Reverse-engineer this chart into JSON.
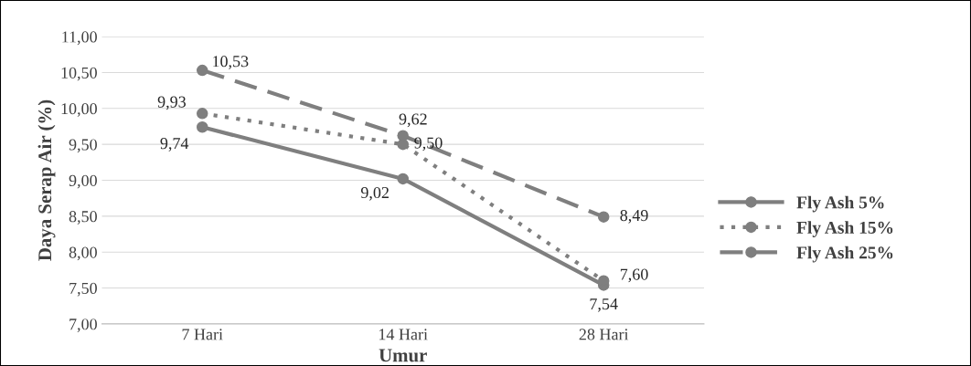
{
  "chart_data": {
    "type": "line",
    "xlabel": "Umur",
    "ylabel": "Daya Serap Air (%)",
    "categories": [
      "7 Hari",
      "14 Hari",
      "28 Hari"
    ],
    "series": [
      {
        "name": "Fly Ash 5%",
        "color": "#7f7f7f",
        "values": [
          9.74,
          9.02,
          7.54
        ],
        "value_labels": [
          "9,74",
          "9,02",
          "7,54"
        ],
        "line_style": "solid",
        "marker": "circle"
      },
      {
        "name": "Fly Ash 15%",
        "color": "#7f7f7f",
        "values": [
          9.93,
          9.5,
          7.6
        ],
        "value_labels": [
          "9,93",
          "9,50",
          "7,60"
        ],
        "line_style": "dotted",
        "marker": "circle"
      },
      {
        "name": "Fly Ash 25%",
        "color": "#7f7f7f",
        "values": [
          10.53,
          9.62,
          8.49
        ],
        "value_labels": [
          "10,53",
          "9,62",
          "8,49"
        ],
        "line_style": "dashed",
        "marker": "circle"
      }
    ],
    "ylim": [
      7,
      11
    ],
    "yticks": [
      {
        "value": 7,
        "label": "7,00"
      },
      {
        "value": 7.5,
        "label": "7,50"
      },
      {
        "value": 8,
        "label": "8,00"
      },
      {
        "value": 8.5,
        "label": "8,50"
      },
      {
        "value": 9,
        "label": "9,00"
      },
      {
        "value": 9.5,
        "label": "9,50"
      },
      {
        "value": 10,
        "label": "10,00"
      },
      {
        "value": 10.5,
        "label": "10,50"
      },
      {
        "value": 11,
        "label": "11,00"
      }
    ],
    "grid": "y",
    "legend": "right"
  }
}
